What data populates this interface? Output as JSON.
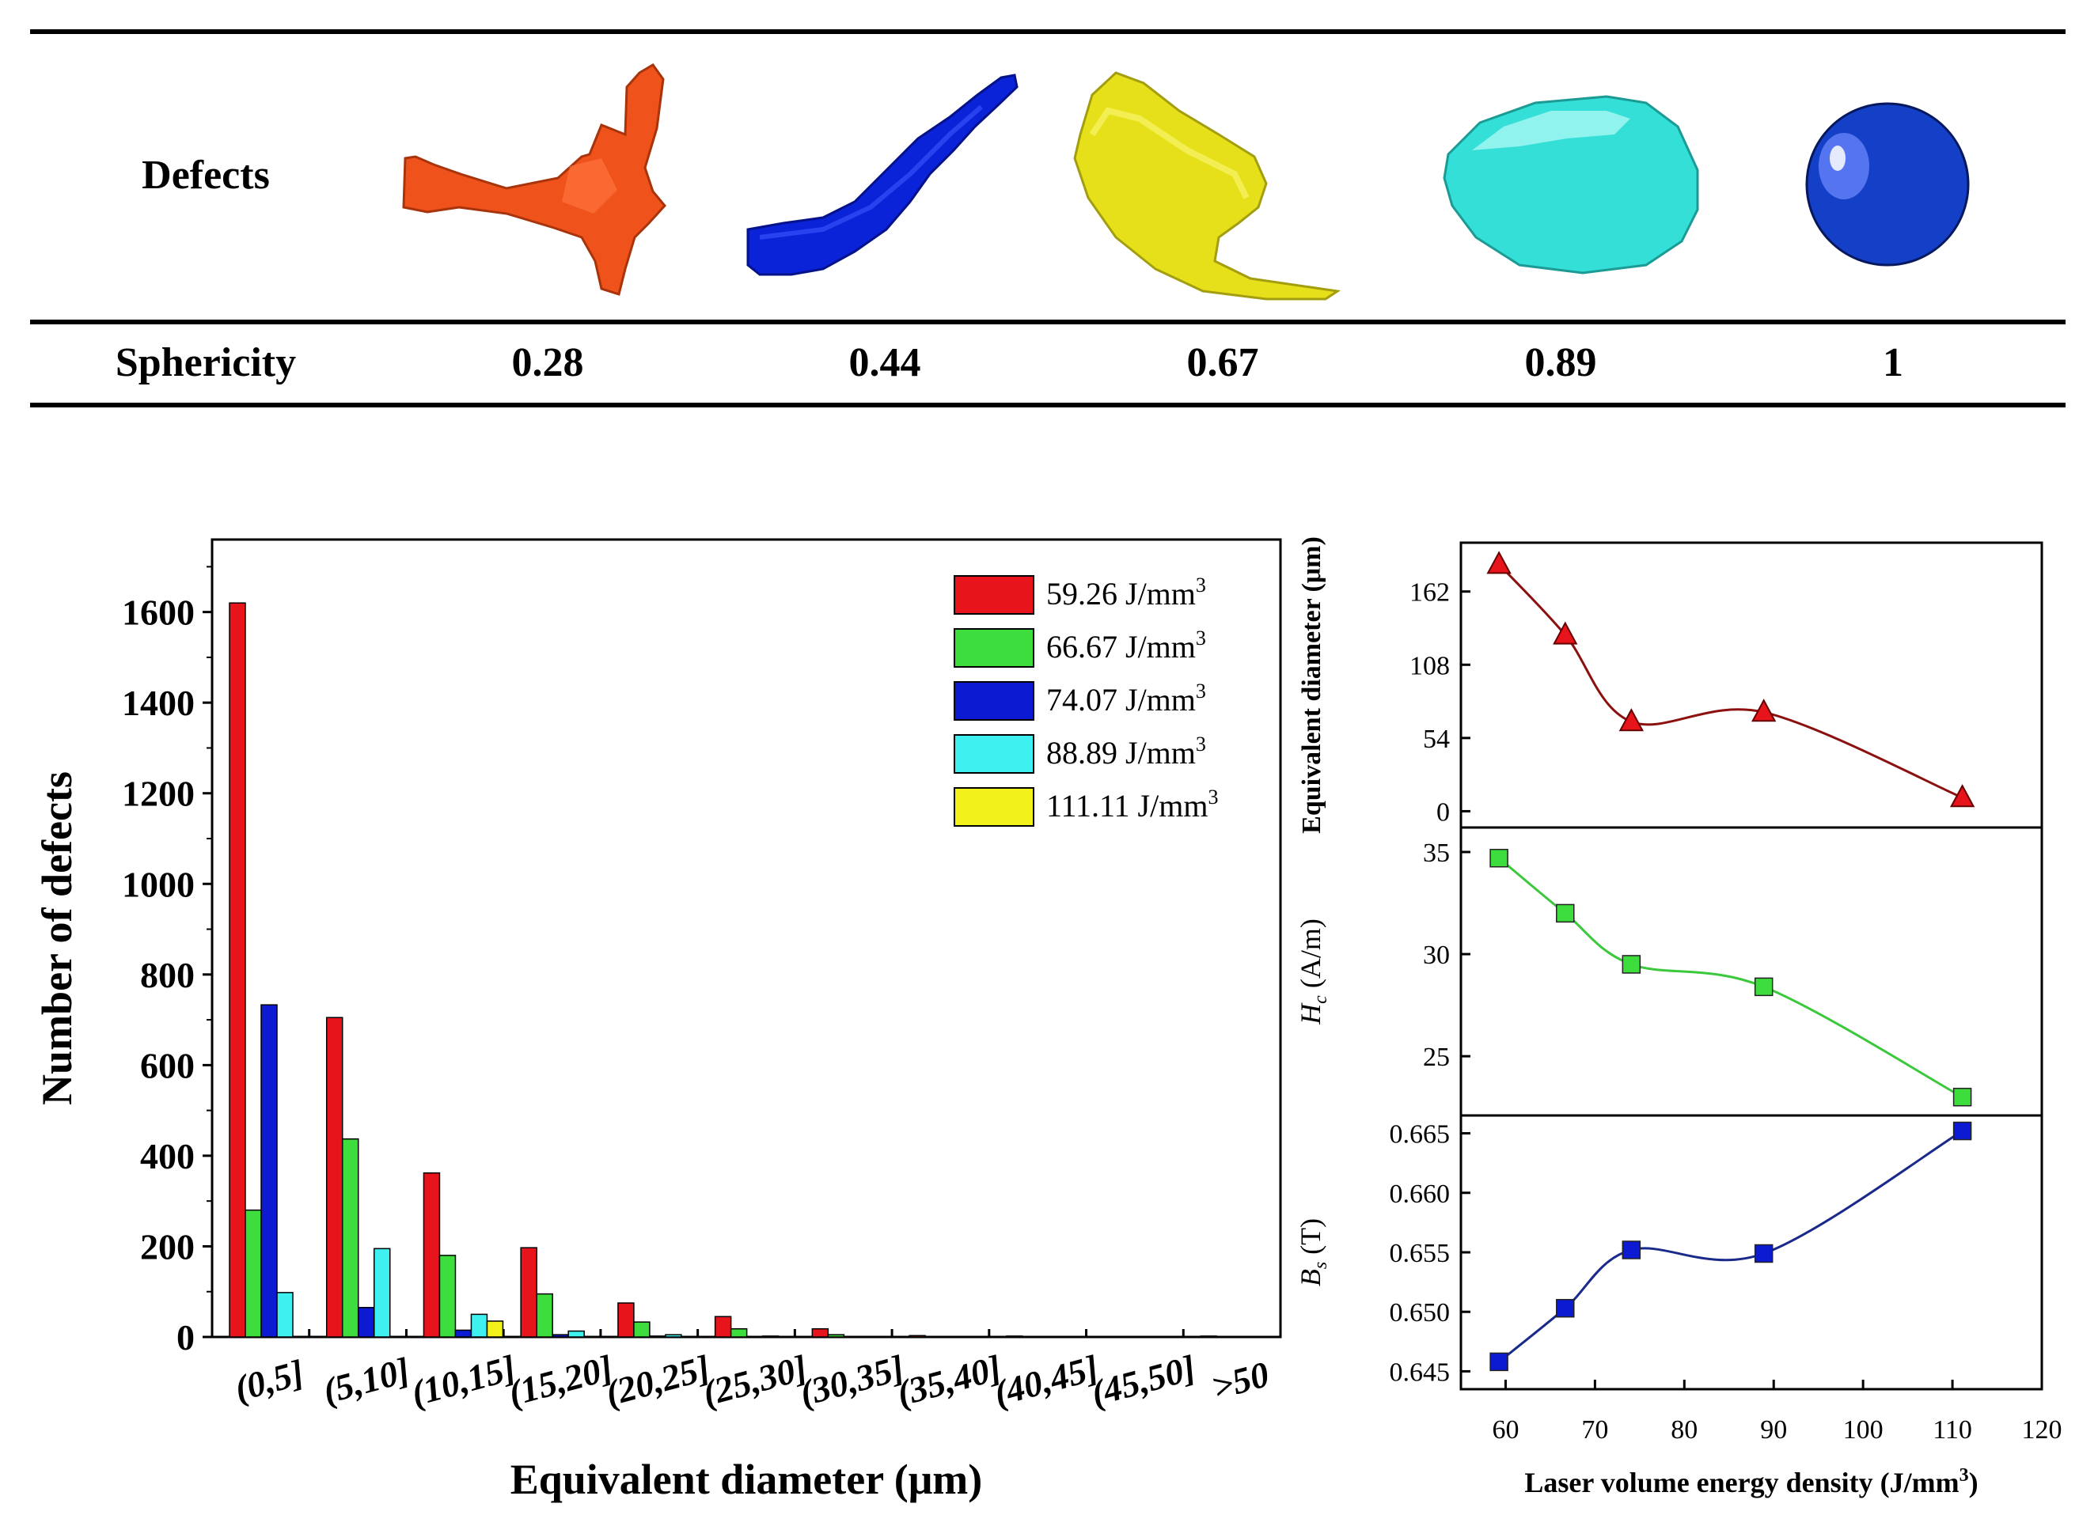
{
  "defects_table": {
    "row1_label": "Defects",
    "row2_label": "Sphericity",
    "shapes": [
      {
        "icon": "irregular-defect-icon",
        "sphericity": "0.28",
        "color": "#f0521c"
      },
      {
        "icon": "elongated-defect-icon",
        "sphericity": "0.44",
        "color": "#0a22d8"
      },
      {
        "icon": "curved-defect-icon",
        "sphericity": "0.67",
        "color": "#e6e01a"
      },
      {
        "icon": "ellipsoid-defect-icon",
        "sphericity": "0.89",
        "color": "#33dfd6"
      },
      {
        "icon": "spherical-defect-icon",
        "sphericity": "1",
        "color": "#1440c8"
      }
    ]
  },
  "chart_data": [
    {
      "type": "bar",
      "title": "",
      "xlabel": "Equivalent diameter (μm)",
      "ylabel": "Number of defects",
      "ylim": [
        0,
        1760
      ],
      "yticks": [
        0,
        200,
        400,
        600,
        800,
        1000,
        1200,
        1400,
        1600
      ],
      "categories": [
        "(0,5]",
        "(5,10]",
        "(10,15]",
        "(15,20]",
        "(20,25]",
        "(25,30]",
        "(30,35]",
        "(35,40]",
        "(40,45]",
        "(45,50]",
        ">50"
      ],
      "legend_position": "top-right",
      "series": [
        {
          "name": "59.26",
          "unit": "J/mm",
          "sup": "3",
          "color": "#e8141c",
          "values": [
            1620,
            705,
            362,
            197,
            75,
            45,
            18,
            3,
            2,
            1,
            2
          ]
        },
        {
          "name": "66.67",
          "unit": "J/mm",
          "sup": "3",
          "color": "#3ddd3d",
          "values": [
            280,
            437,
            180,
            95,
            33,
            18,
            5,
            1,
            1,
            0,
            0
          ]
        },
        {
          "name": "74.07",
          "unit": "J/mm",
          "sup": "3",
          "color": "#0c1ad2",
          "values": [
            733,
            65,
            15,
            5,
            2,
            1,
            0,
            0,
            0,
            0,
            0
          ]
        },
        {
          "name": "88.89",
          "unit": "J/mm",
          "sup": "3",
          "color": "#3ef0f0",
          "values": [
            98,
            195,
            50,
            13,
            5,
            2,
            1,
            0,
            0,
            0,
            0
          ]
        },
        {
          "name": "111.11",
          "unit": "J/mm",
          "sup": "3",
          "color": "#f2f21a",
          "values": [
            0,
            0,
            35,
            0,
            0,
            0,
            0,
            0,
            0,
            0,
            0
          ]
        }
      ]
    },
    {
      "type": "line",
      "ylabel": "Equivalent diameter (μm)",
      "ylim": [
        -12,
        198
      ],
      "yticks": [
        "0",
        "54",
        "108",
        "162"
      ],
      "ytick_values": [
        0,
        54,
        108,
        162
      ],
      "marker": "triangle",
      "color": "#e8141c",
      "line_color": "#8b1010",
      "x": [
        59.26,
        66.67,
        74.07,
        88.89,
        111.11
      ],
      "y": [
        182,
        130,
        66,
        73,
        10
      ]
    },
    {
      "type": "line",
      "ylabel_main": "H",
      "ylabel_sub": "c",
      "ylabel_rest": " (A/m)",
      "ylim": [
        22.1,
        36.2
      ],
      "yticks": [
        "25",
        "30",
        "35"
      ],
      "ytick_values": [
        25,
        30,
        35
      ],
      "marker": "square",
      "color": "#3ddd3d",
      "line_color": "#3cc83c",
      "x": [
        59.26,
        66.67,
        74.07,
        88.89,
        111.11
      ],
      "y": [
        34.7,
        32.0,
        29.5,
        28.4,
        23.0
      ]
    },
    {
      "type": "line",
      "ylabel_main": "B",
      "ylabel_sub": "s",
      "ylabel_rest": " (T)",
      "ylim": [
        0.6435,
        0.6665
      ],
      "yticks": [
        "0.645",
        "0.650",
        "0.655",
        "0.660",
        "0.665"
      ],
      "ytick_values": [
        0.645,
        0.65,
        0.655,
        0.66,
        0.665
      ],
      "marker": "square",
      "color": "#0c1ad2",
      "line_color": "#1a2a8a",
      "x": [
        59.26,
        66.67,
        74.07,
        88.89,
        111.11
      ],
      "y": [
        0.6458,
        0.6503,
        0.6552,
        0.6549,
        0.6652
      ]
    }
  ],
  "shared_x_axis": {
    "label": "Laser volume energy density (J/mm",
    "label_sup": "3",
    "label_end": ")",
    "xlim": [
      55,
      120
    ],
    "xticks": [
      "60",
      "70",
      "80",
      "90",
      "100",
      "110",
      "120"
    ],
    "xtick_values": [
      60,
      70,
      80,
      90,
      100,
      110,
      120
    ]
  }
}
